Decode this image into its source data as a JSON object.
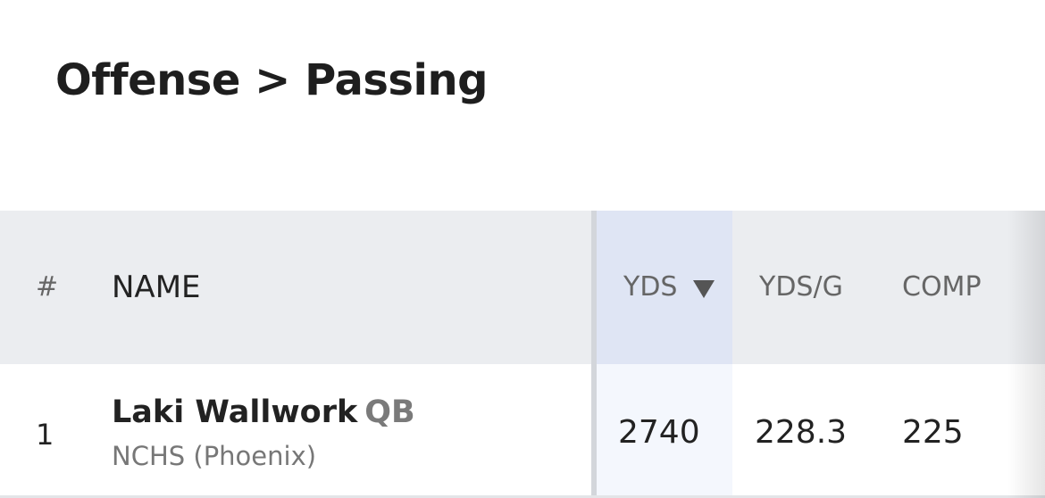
{
  "header": {
    "title": "Offense > Passing"
  },
  "table": {
    "columns": [
      "#",
      "NAME",
      "YDS",
      "YDS/G",
      "COMP"
    ],
    "rows": [
      {
        "rank": 1,
        "name": "Laki Wallwork",
        "position": "QB",
        "school": "NCHS (Phoenix)",
        "values": [
          2740,
          228.3,
          225
        ]
      }
    ]
  }
}
